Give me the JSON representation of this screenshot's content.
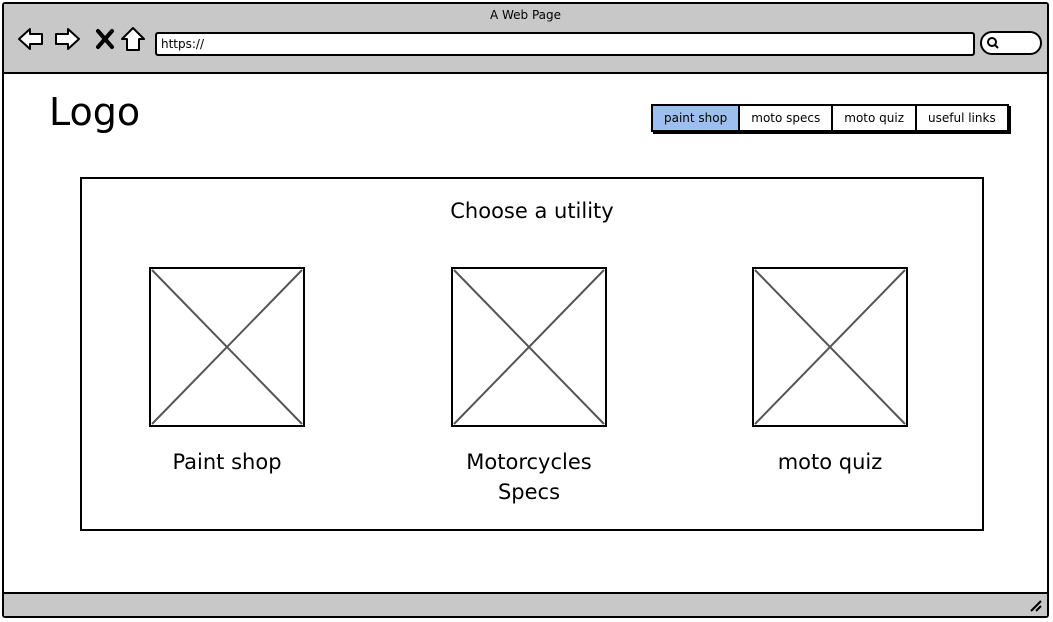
{
  "window": {
    "title": "A Web Page"
  },
  "toolbar": {
    "icons": [
      "back-icon",
      "forward-icon",
      "stop-icon",
      "home-icon",
      "search-icon"
    ],
    "url_value": "https://"
  },
  "page": {
    "logo": "Logo",
    "nav_tabs": [
      {
        "label": "paint shop",
        "active": true
      },
      {
        "label": "moto specs",
        "active": false
      },
      {
        "label": "moto quiz",
        "active": false
      },
      {
        "label": "useful links",
        "active": false
      }
    ],
    "panel": {
      "heading": "Choose a utility",
      "cards": [
        {
          "label_lines": [
            "Paint shop"
          ],
          "image": "image-placeholder"
        },
        {
          "label_lines": [
            "Motorcycles",
            "Specs"
          ],
          "image": "image-placeholder"
        },
        {
          "label_lines": [
            "moto quiz"
          ],
          "image": "image-placeholder"
        }
      ]
    }
  },
  "colors": {
    "chrome": "#c8c8c8",
    "active_tab": "#9cbff0"
  }
}
